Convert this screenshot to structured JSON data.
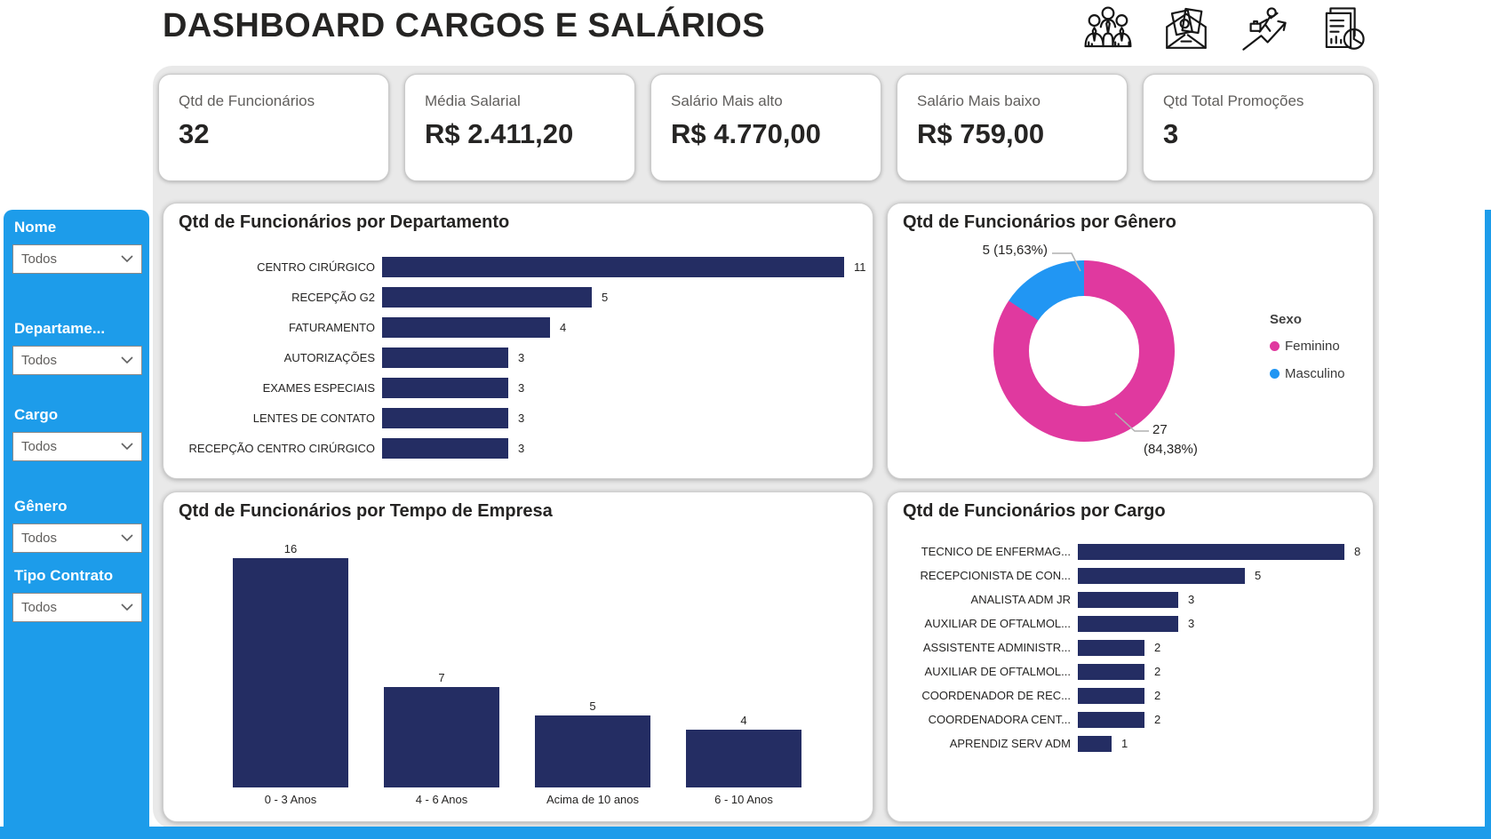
{
  "page": {
    "title": "DASHBOARD CARGOS E SALÁRIOS",
    "accent_blue": "#1d9cea",
    "bar_navy": "#242d63",
    "text_dark": "#252423",
    "kpi_label_color": "#605e5c"
  },
  "header_icons": [
    "employees-group-icon",
    "salary-envelope-icon",
    "career-growth-icon",
    "report-documents-icon"
  ],
  "kpis": [
    {
      "label": "Qtd de Funcionários",
      "value": "32"
    },
    {
      "label": "Média Salarial",
      "value": "R$ 2.411,20"
    },
    {
      "label": "Salário Mais alto",
      "value": "R$ 4.770,00"
    },
    {
      "label": "Salário Mais baixo",
      "value": "R$ 759,00"
    },
    {
      "label": "Qtd Total Promoções",
      "value": "3"
    }
  ],
  "filters": [
    {
      "label": "Nome",
      "value": "Todos"
    },
    {
      "label": "Departame...",
      "value": "Todos"
    },
    {
      "label": "Cargo",
      "value": "Todos"
    },
    {
      "label": "Gênero",
      "value": "Todos"
    },
    {
      "label": "Tipo Contrato",
      "value": "Todos"
    }
  ],
  "chart_data": [
    {
      "id": "funcionarios-por-departamento",
      "type": "bar",
      "orientation": "horizontal",
      "title": "Qtd de Funcionários por Departamento",
      "categories": [
        "CENTRO CIRÚRGICO",
        "RECEPÇÃO G2",
        "FATURAMENTO",
        "AUTORIZAÇÕES",
        "EXAMES ESPECIAIS",
        "LENTES DE CONTATO",
        "RECEPÇÃO CENTRO CIRÚRGICO"
      ],
      "values": [
        11,
        5,
        4,
        3,
        3,
        3,
        3
      ],
      "bar_color": "#242d63",
      "xlabel": "",
      "ylabel": "",
      "xlim": [
        0,
        11
      ],
      "grid": false,
      "data_labels": true
    },
    {
      "id": "funcionarios-por-genero",
      "type": "pie",
      "title": "Qtd de Funcionários por Gênero",
      "legend_title": "Sexo",
      "legend_position": "right",
      "total": 32,
      "series": [
        {
          "name": "Feminino",
          "value": 27,
          "share_pct": 84.38,
          "color": "#e0399f",
          "callout": [
            "27",
            "(84,38%)"
          ]
        },
        {
          "name": "Masculino",
          "value": 5,
          "share_pct": 15.63,
          "color": "#2196f3",
          "callout": [
            "5 (15,63%)"
          ]
        }
      ]
    },
    {
      "id": "funcionarios-por-tempo-de-empresa",
      "type": "bar",
      "orientation": "vertical",
      "title": "Qtd de Funcionários por Tempo de Empresa",
      "categories": [
        "0 - 3 Anos",
        "4 - 6 Anos",
        "Acima de 10 anos",
        "6 - 10 Anos"
      ],
      "values": [
        16,
        7,
        5,
        4
      ],
      "bar_color": "#242d63",
      "xlabel": "",
      "ylabel": "",
      "ylim": [
        0,
        16
      ],
      "grid": false,
      "data_labels": true
    },
    {
      "id": "funcionarios-por-cargo",
      "type": "bar",
      "orientation": "horizontal",
      "title": "Qtd de Funcionários por Cargo",
      "categories": [
        "TECNICO DE ENFERMAG...",
        "RECEPCIONISTA DE CON...",
        "ANALISTA ADM JR",
        "AUXILIAR DE OFTALMOL...",
        "ASSISTENTE ADMINISTR...",
        "AUXILIAR DE OFTALMOL...",
        "COORDENADOR DE REC...",
        "COORDENADORA CENT...",
        "APRENDIZ SERV ADM"
      ],
      "values": [
        8,
        5,
        3,
        3,
        2,
        2,
        2,
        2,
        1
      ],
      "bar_color": "#242d63",
      "xlabel": "",
      "ylabel": "",
      "xlim": [
        0,
        8
      ],
      "grid": false,
      "data_labels": true
    }
  ]
}
